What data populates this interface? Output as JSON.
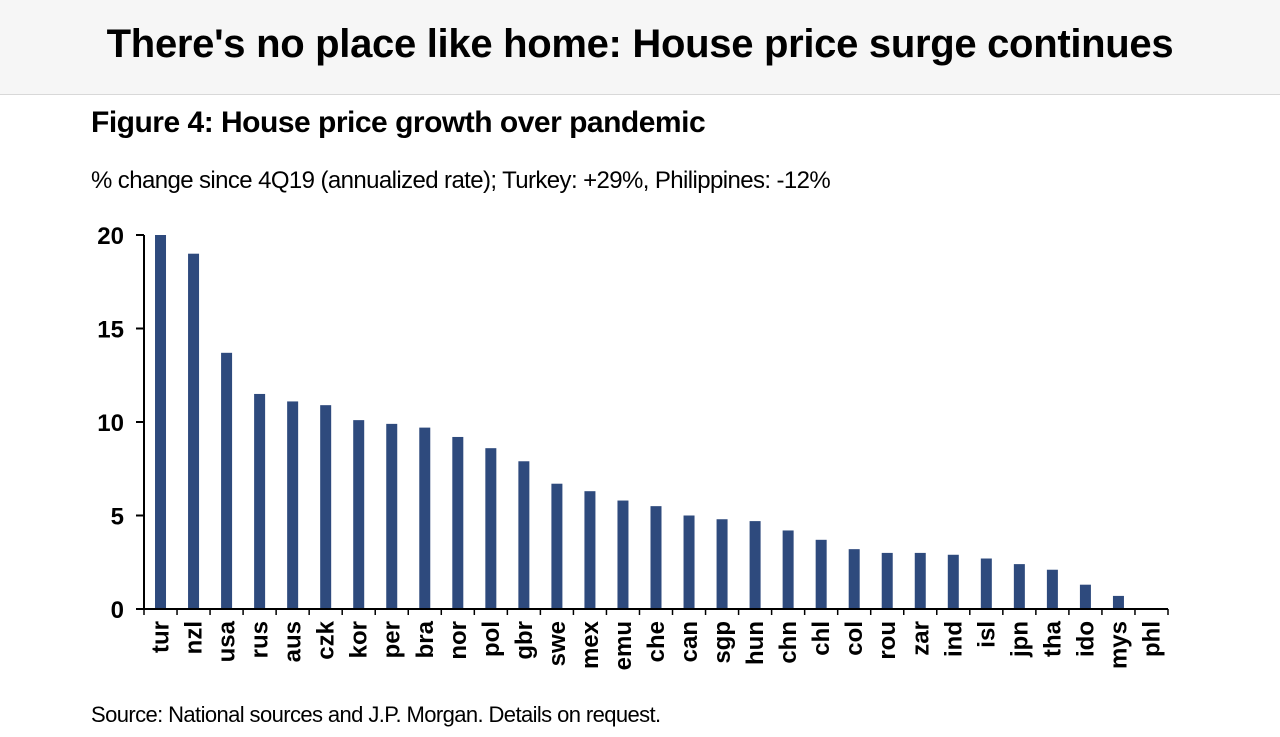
{
  "header": {
    "title": "There's no place like home: House price surge continues"
  },
  "figure": {
    "title": "Figure 4: House price growth over pandemic",
    "subtitle": "% change since 4Q19 (annualized rate); Turkey: +29%, Philippines: -12%",
    "source": "Source: National sources and J.P. Morgan. Details on request."
  },
  "chart_data": {
    "type": "bar",
    "categories": [
      "tur",
      "nzl",
      "usa",
      "rus",
      "aus",
      "czk",
      "kor",
      "per",
      "bra",
      "nor",
      "pol",
      "gbr",
      "swe",
      "mex",
      "emu",
      "che",
      "can",
      "sgp",
      "hun",
      "chn",
      "chl",
      "col",
      "rou",
      "zar",
      "ind",
      "isl",
      "jpn",
      "tha",
      "ido",
      "mys",
      "phl"
    ],
    "values": [
      20,
      19,
      13.7,
      11.5,
      11.1,
      10.9,
      10.1,
      9.9,
      9.7,
      9.2,
      8.6,
      7.9,
      6.7,
      6.3,
      5.8,
      5.5,
      5.0,
      4.8,
      4.7,
      4.2,
      3.7,
      3.2,
      3.0,
      3.0,
      2.9,
      2.7,
      2.4,
      2.1,
      1.3,
      0.7,
      0
    ],
    "ylim": [
      0,
      20
    ],
    "yticks": [
      "0",
      "5",
      "10",
      "15",
      "20"
    ],
    "bar_color": "#2e4a7d",
    "xlabel": "",
    "ylabel": ""
  }
}
